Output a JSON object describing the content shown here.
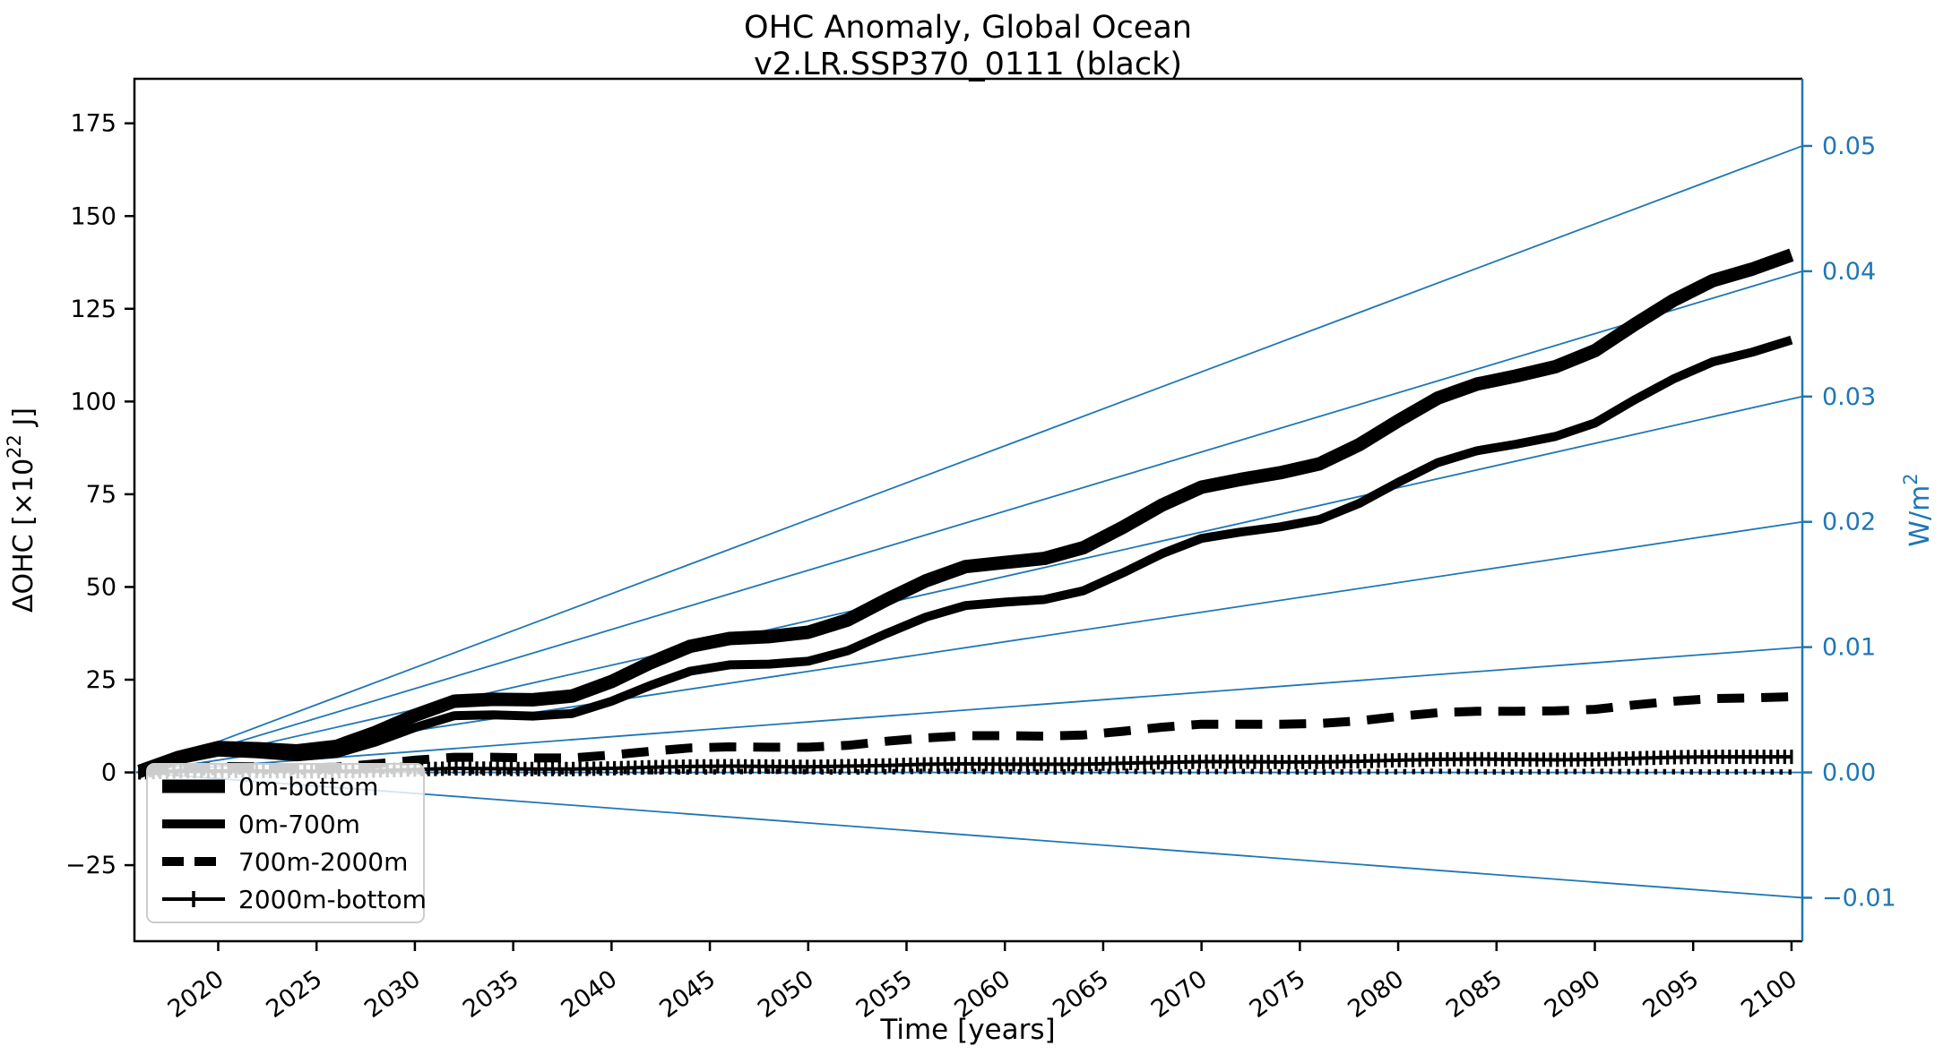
{
  "figure": {
    "title_line1": "OHC Anomaly, Global Ocean",
    "title_line2": "v2.LR.SSP370_0111 (black)",
    "background_color": "#ffffff",
    "accent_blue": "#1f77b4"
  },
  "axes": {
    "x": {
      "label": "Time [years]",
      "min": 2015.74,
      "max": 2100.55,
      "tick_rotation_deg": -36,
      "ticks": [
        2020,
        2025,
        2030,
        2035,
        2040,
        2045,
        2050,
        2055,
        2060,
        2065,
        2070,
        2075,
        2080,
        2085,
        2090,
        2095,
        2100
      ]
    },
    "y_left": {
      "label_main": "ΔOHC [×10",
      "label_sup": "22",
      "label_end": " J]",
      "min": -45.5,
      "max": 187,
      "ticks": [
        {
          "v": 175,
          "label": "175"
        },
        {
          "v": 150,
          "label": "150"
        },
        {
          "v": 125,
          "label": "125"
        },
        {
          "v": 100,
          "label": "100"
        },
        {
          "v": 75,
          "label": "75"
        },
        {
          "v": 50,
          "label": "50"
        },
        {
          "v": 25,
          "label": "25"
        },
        {
          "v": 0,
          "label": "0"
        },
        {
          "v": -25,
          "label": "−25"
        }
      ]
    },
    "y_right": {
      "label_main": "W/m",
      "label_sup": "2",
      "color": "#1f77b4",
      "left_units_per_wm2": 3378,
      "ticks": [
        {
          "v": 0.05,
          "label": "0.05"
        },
        {
          "v": 0.04,
          "label": "0.04"
        },
        {
          "v": 0.03,
          "label": "0.03"
        },
        {
          "v": 0.02,
          "label": "0.02"
        },
        {
          "v": 0.01,
          "label": "0.01"
        },
        {
          "v": 0.0,
          "label": "0.00"
        },
        {
          "v": -0.01,
          "label": "−0.01"
        }
      ]
    }
  },
  "legend": {
    "items": [
      {
        "label": "0m-bottom",
        "style": "thick"
      },
      {
        "label": "0m-700m",
        "style": "solid"
      },
      {
        "label": "700m-2000m",
        "style": "dashed"
      },
      {
        "label": "2000m-bottom",
        "style": "plus"
      }
    ]
  },
  "chart_data": {
    "type": "line",
    "title": "OHC Anomaly, Global Ocean v2.LR.SSP370_0111 (black)",
    "xlabel": "Time [years]",
    "ylabel": "ΔOHC [×10^22 J]",
    "y2label": "W/m^2",
    "xlim": [
      2015.74,
      2100.55
    ],
    "ylim_left": [
      -45.5,
      187
    ],
    "ylim_right": [
      -0.0135,
      0.0554
    ],
    "grid": false,
    "legend_position": "lower left",
    "x_years": [
      2016,
      2018,
      2020,
      2022,
      2024,
      2026,
      2028,
      2030,
      2032,
      2034,
      2036,
      2038,
      2040,
      2042,
      2044,
      2046,
      2048,
      2050,
      2052,
      2054,
      2056,
      2058,
      2060,
      2062,
      2064,
      2066,
      2068,
      2070,
      2072,
      2074,
      2076,
      2078,
      2080,
      2082,
      2084,
      2086,
      2088,
      2090,
      2092,
      2094,
      2096,
      2098,
      2100
    ],
    "series": [
      {
        "name": "0m-bottom",
        "style": "thick",
        "color": "#000000",
        "linewidth": 15,
        "values": [
          0.3,
          4.1,
          6.7,
          6.4,
          5.8,
          7.0,
          10.8,
          15.4,
          19.2,
          19.7,
          19.6,
          20.6,
          24.5,
          29.6,
          34.0,
          36.1,
          36.6,
          37.8,
          41.1,
          46.6,
          51.7,
          55.5,
          56.6,
          57.7,
          60.6,
          66.1,
          72.1,
          76.9,
          79.0,
          80.8,
          83.2,
          88.3,
          94.8,
          100.9,
          104.7,
          106.9,
          109.4,
          113.7,
          120.7,
          127.3,
          132.6,
          135.7,
          139.5
        ]
      },
      {
        "name": "0m-700m",
        "style": "solid",
        "color": "#000000",
        "linewidth": 10,
        "values": [
          0.2,
          3.4,
          5.5,
          5.0,
          4.2,
          5.1,
          8.2,
          12.1,
          15.3,
          15.5,
          15.2,
          15.9,
          19.2,
          23.5,
          27.3,
          29.0,
          29.2,
          30.0,
          32.8,
          37.5,
          41.9,
          45.0,
          45.9,
          46.6,
          49.0,
          53.8,
          59.0,
          63.1,
          64.8,
          66.2,
          68.2,
          72.5,
          78.2,
          83.5,
          86.7,
          88.5,
          90.6,
          94.2,
          100.4,
          106.1,
          110.7,
          113.3,
          116.6
        ]
      },
      {
        "name": "700m-2000m",
        "style": "dashed",
        "color": "#000000",
        "linewidth": 10,
        "values": [
          0.1,
          1.0,
          1.6,
          1.5,
          1.2,
          1.4,
          2.3,
          3.3,
          4.1,
          4.1,
          3.9,
          3.9,
          4.7,
          5.7,
          6.6,
          6.9,
          6.8,
          6.8,
          7.3,
          8.4,
          9.3,
          9.9,
          9.9,
          9.8,
          10.1,
          11.1,
          12.2,
          13.0,
          13.0,
          13.0,
          13.2,
          13.9,
          15.1,
          16.1,
          16.5,
          16.5,
          16.6,
          17.0,
          18.2,
          19.2,
          19.9,
          20.1,
          20.4
        ]
      },
      {
        "name": "2000m-bottom",
        "style": "plus",
        "color": "#000000",
        "linewidth": 4,
        "values": [
          0.0,
          0.3,
          0.4,
          0.4,
          0.3,
          0.3,
          0.5,
          0.8,
          1.1,
          1.0,
          0.9,
          0.9,
          1.1,
          1.4,
          1.6,
          1.7,
          1.6,
          1.5,
          1.7,
          1.9,
          2.2,
          2.3,
          2.2,
          2.2,
          2.2,
          2.5,
          2.7,
          2.9,
          2.9,
          2.8,
          2.8,
          3.0,
          3.3,
          3.5,
          3.6,
          3.5,
          3.4,
          3.5,
          3.8,
          4.1,
          4.2,
          4.2,
          4.2
        ]
      },
      {
        "name": "dotted-unlabeled-a",
        "style": "dotted",
        "color": "#000000",
        "linewidth": 3.5,
        "values": [
          -0.5,
          -0.1,
          0.2,
          0.4,
          0.3,
          0.4,
          0.5,
          0.4,
          0.6,
          0.5,
          0.4,
          0.5,
          0.6,
          0.5,
          0.4,
          0.5,
          0.6,
          0.5,
          0.4,
          0.5,
          0.6,
          0.6,
          0.5,
          0.4,
          0.5,
          0.6,
          0.5,
          0.5,
          0.6,
          0.5,
          0.4,
          0.5,
          0.5,
          0.6,
          0.5,
          0.4,
          0.5,
          0.6,
          0.5,
          0.5,
          0.4,
          0.5,
          0.4
        ]
      },
      {
        "name": "dotted-unlabeled-b",
        "style": "dotted",
        "color": "#000000",
        "linewidth": 3.5,
        "values": [
          -1.0,
          -0.6,
          -0.3,
          -0.1,
          -0.2,
          -0.1,
          0.0,
          -0.1,
          0.0,
          -0.1,
          -0.2,
          -0.1,
          0.0,
          -0.1,
          -0.2,
          -0.1,
          0.0,
          -0.1,
          -0.2,
          -0.1,
          0.0,
          0.0,
          -0.1,
          -0.2,
          -0.1,
          0.0,
          -0.1,
          -0.1,
          0.0,
          -0.1,
          -0.2,
          -0.1,
          -0.1,
          0.0,
          -0.1,
          -0.2,
          -0.1,
          0.0,
          -0.1,
          -0.1,
          -0.2,
          -0.1,
          -0.2
        ]
      }
    ],
    "reference_lines": {
      "color": "#1f77b4",
      "linewidth": 1.8,
      "origin_year_value": [
        2015.74,
        0
      ],
      "end_values_wm2_at_right_edge": [
        0.05,
        0.04,
        0.03,
        0.02,
        0.01,
        0.0,
        -0.01
      ]
    }
  }
}
